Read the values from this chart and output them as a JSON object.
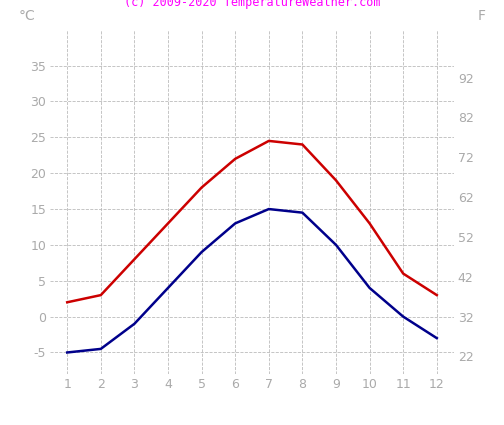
{
  "months": [
    1,
    2,
    3,
    4,
    5,
    6,
    7,
    8,
    9,
    10,
    11,
    12
  ],
  "max_temp_c": [
    2,
    3,
    8,
    13,
    18,
    22,
    24.5,
    24,
    19,
    13,
    6,
    3
  ],
  "min_temp_c": [
    -5,
    -4.5,
    -1,
    4,
    9,
    13,
    15,
    14.5,
    10,
    4,
    0,
    -3
  ],
  "ylim_c": [
    -8,
    40
  ],
  "yticks_c": [
    -5,
    0,
    5,
    10,
    15,
    20,
    25,
    30,
    35
  ],
  "yticks_f": [
    22,
    32,
    42,
    52,
    62,
    72,
    82,
    92
  ],
  "xticks": [
    1,
    2,
    3,
    4,
    5,
    6,
    7,
    8,
    9,
    10,
    11,
    12
  ],
  "max_line_color": "#cc0000",
  "min_line_color": "#00008b",
  "grid_color": "#bbbbbb",
  "title": "(c) 2009-2020 TemperatureWeather.com",
  "title_color": "#ff00ff",
  "ylabel_left": "°C",
  "ylabel_right": "F",
  "label_color": "#aaaaaa",
  "background_color": "#ffffff",
  "line_width": 1.8
}
